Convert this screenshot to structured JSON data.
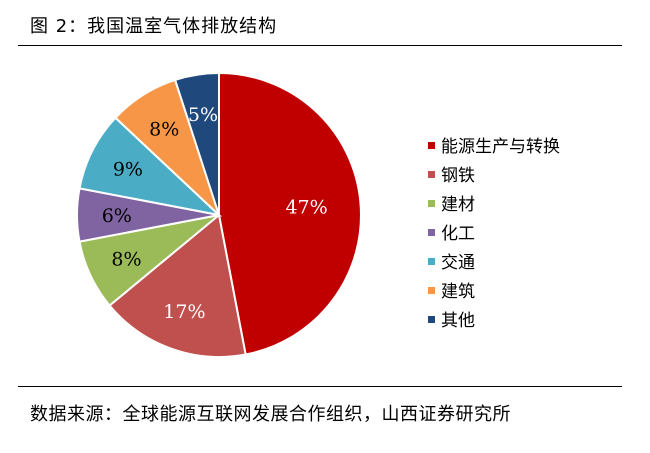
{
  "header": {
    "title": "图 2：我国温室气体排放结构"
  },
  "footer": {
    "source": "数据来源：全球能源互联网发展合作组织，山西证券研究所"
  },
  "chart_data": {
    "type": "pie",
    "title": "",
    "legend_position": "right",
    "slices": [
      {
        "name": "能源生产与转换",
        "value": 47,
        "label": "47%",
        "color": "#c00000",
        "label_color": "#ffffff"
      },
      {
        "name": "钢铁",
        "value": 17,
        "label": "17%",
        "color": "#c0504d",
        "label_color": "#ffffff"
      },
      {
        "name": "建材",
        "value": 8,
        "label": "8%",
        "color": "#9bbb59",
        "label_color": "#000000"
      },
      {
        "name": "化工",
        "value": 6,
        "label": "6%",
        "color": "#8064a2",
        "label_color": "#000000"
      },
      {
        "name": "交通",
        "value": 9,
        "label": "9%",
        "color": "#4bacc6",
        "label_color": "#000000"
      },
      {
        "name": "建筑",
        "value": 8,
        "label": "8%",
        "color": "#f79646",
        "label_color": "#000000"
      },
      {
        "name": "其他",
        "value": 5,
        "label": "5%",
        "color": "#1f497d",
        "label_color": "#ffffff"
      }
    ]
  }
}
